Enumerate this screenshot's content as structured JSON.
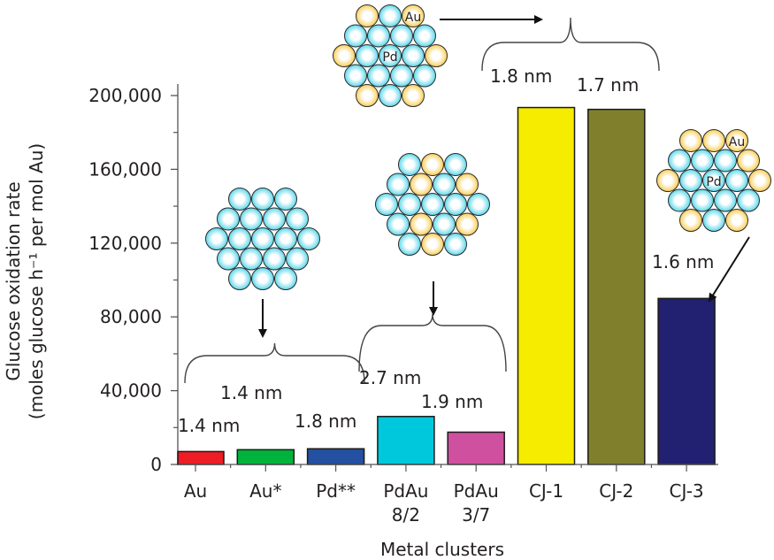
{
  "chart_data": {
    "type": "bar",
    "title": "",
    "xlabel": "Metal clusters",
    "ylabel": [
      "Glucose oxidation rate",
      "(moles glucose h⁻¹ per mol Au)"
    ],
    "ylim": [
      0,
      200000
    ],
    "yticks": [
      0,
      40000,
      80000,
      120000,
      160000,
      200000
    ],
    "ytick_labels": [
      "0",
      "40,000",
      "80,000",
      "120,000",
      "160,000",
      "200,000"
    ],
    "grid": false,
    "categories": [
      {
        "label": [
          "Au"
        ],
        "value": 7000,
        "color": "#ee1c25"
      },
      {
        "label": [
          "Au*"
        ],
        "value": 8000,
        "color": "#00b33c"
      },
      {
        "label": [
          "Pd**"
        ],
        "value": 8500,
        "color": "#2350a0"
      },
      {
        "label": [
          "PdAu",
          "8/2"
        ],
        "value": 26000,
        "color": "#00c8dc"
      },
      {
        "label": [
          "PdAu",
          "3/7"
        ],
        "value": 17500,
        "color": "#d050a0"
      },
      {
        "label": [
          "CJ-1"
        ],
        "value": 193500,
        "color": "#f5ec00"
      },
      {
        "label": [
          "CJ-2"
        ],
        "value": 192500,
        "color": "#80802c"
      },
      {
        "label": [
          "CJ-3"
        ],
        "value": 90000,
        "color": "#222070"
      }
    ],
    "annotations": {
      "size_au": "1.4 nm",
      "size_au_star": "1.4 nm",
      "size_pd": "1.8 nm",
      "size_pdau82": "2.7 nm",
      "size_pdau37": "1.9 nm",
      "size_cj1": "1.8 nm",
      "size_cj2": "1.7 nm",
      "size_cj3": "1.6 nm",
      "au_label": "Au",
      "pd_label": "Pd"
    },
    "colors": {
      "au_atom": "#f9c63a",
      "pd_atom": "#3fd0e6",
      "outline": "#2a2a2a"
    }
  }
}
